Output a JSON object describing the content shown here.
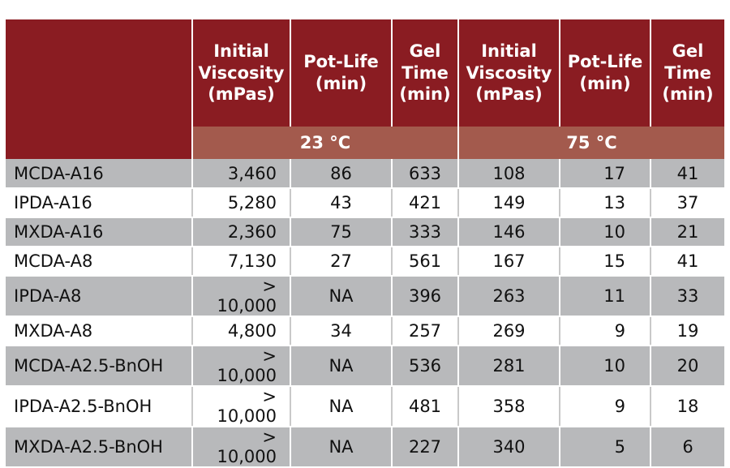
{
  "headers": [
    "",
    "Initial Viscosity (mPas)",
    "Pot-Life (min)",
    "Gel Time (min)",
    "Initial Viscosity (mPas)",
    "Pot-Life (min)",
    "Gel Time (min)"
  ],
  "header_lines": [
    [],
    [
      "Initial",
      "Viscosity",
      "(mPas)"
    ],
    [
      "Pot-Life",
      "(min)"
    ],
    [
      "Gel",
      "Time",
      "(min)"
    ],
    [
      "Initial",
      "Viscosity",
      "(mPas)"
    ],
    [
      "Pot-Life",
      "(min)"
    ],
    [
      "Gel",
      "Time",
      "(min)"
    ]
  ],
  "temperatures": [
    "23 °C",
    "75 °C"
  ],
  "colors": {
    "header": "#8a1c22",
    "subheader": "#a35a4d",
    "row_gray": "#b8b9bb"
  },
  "rows": [
    [
      "MCDA-A16",
      "3,460",
      "86",
      "633",
      "108",
      "17",
      "41"
    ],
    [
      "IPDA-A16",
      "5,280",
      "43",
      "421",
      "149",
      "13",
      "37"
    ],
    [
      "MXDA-A16",
      "2,360",
      "75",
      "333",
      "146",
      "10",
      "21"
    ],
    [
      "MCDA-A8",
      "7,130",
      "27",
      "561",
      "167",
      "15",
      "41"
    ],
    [
      "IPDA-A8",
      "> 10,000",
      "NA",
      "396",
      "263",
      "11",
      "33"
    ],
    [
      "MXDA-A8",
      "4,800",
      "34",
      "257",
      "269",
      "9",
      "19"
    ],
    [
      "MCDA-A2.5-BnOH",
      "> 10,000",
      "NA",
      "536",
      "281",
      "10",
      "20"
    ],
    [
      "IPDA-A2.5-BnOH",
      "> 10,000",
      "NA",
      "481",
      "358",
      "9",
      "18"
    ],
    [
      "MXDA-A2.5-BnOH",
      "> 10,000",
      "NA",
      "227",
      "340",
      "5",
      "6"
    ]
  ]
}
